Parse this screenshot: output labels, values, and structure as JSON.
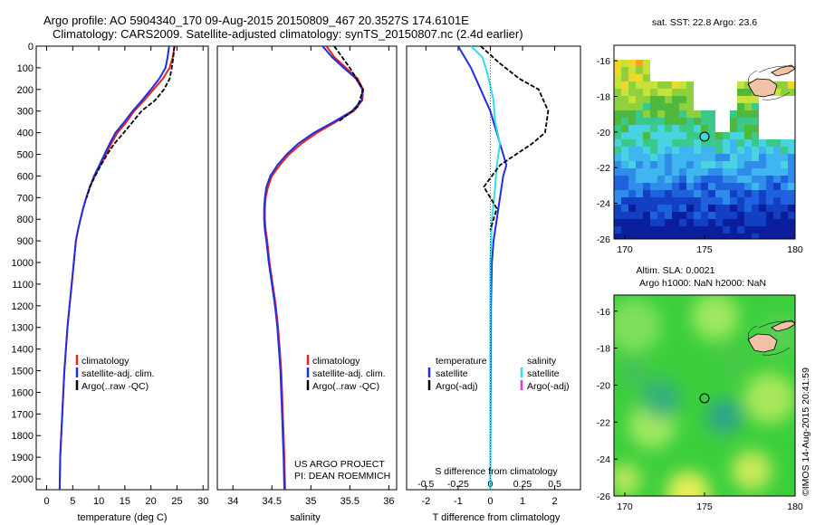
{
  "title": {
    "line1": "Argo profile: AO 5904340_170 09-Aug-2015 20150809_467 20.3527S 174.6101E",
    "line2": "Climatology: CARS2009. Satellite-adjusted climatology: synTS_20150807.nc (2.4d earlier)"
  },
  "credit": "©IMOS 14-Aug-2015 20:41:59",
  "project_text": [
    "US ARGO PROJECT",
    "PI: DEAN ROEMMICH"
  ],
  "colors": {
    "climatology": "#e8221c",
    "satellite": "#1f2ee0",
    "argo": "#000000",
    "s_satellite": "#2fe0e8",
    "s_argo": "#d63cd6"
  },
  "chart_data": [
    {
      "type": "line",
      "xlabel": "temperature (deg C)",
      "xlim": [
        -2,
        31
      ],
      "ylim": [
        0,
        2050
      ],
      "xticks": [
        0,
        5,
        10,
        15,
        20,
        25,
        30
      ],
      "yticks": [
        0,
        100,
        200,
        300,
        400,
        500,
        600,
        700,
        800,
        900,
        1000,
        1100,
        1200,
        1300,
        1400,
        1500,
        1600,
        1700,
        1800,
        1900,
        2000
      ],
      "legend": [
        "climatology",
        "satellite-adj. clim.",
        "Argo(..raw -QC)"
      ],
      "series": [
        {
          "name": "climatology",
          "color": "#e8221c",
          "points": [
            [
              24.5,
              0
            ],
            [
              24.2,
              50
            ],
            [
              23.6,
              100
            ],
            [
              22.3,
              150
            ],
            [
              20.5,
              200
            ],
            [
              18.7,
              250
            ],
            [
              16.8,
              300
            ],
            [
              15.3,
              350
            ],
            [
              13.6,
              400
            ],
            [
              12.4,
              450
            ],
            [
              11.4,
              500
            ],
            [
              10.3,
              550
            ],
            [
              9.2,
              600
            ],
            [
              8.3,
              650
            ],
            [
              7.6,
              700
            ],
            [
              7.0,
              750
            ],
            [
              6.5,
              800
            ],
            [
              6.0,
              850
            ],
            [
              5.6,
              900
            ],
            [
              5.2,
              1000
            ],
            [
              4.8,
              1100
            ],
            [
              4.4,
              1200
            ],
            [
              4.0,
              1300
            ],
            [
              3.7,
              1400
            ],
            [
              3.4,
              1500
            ],
            [
              3.2,
              1600
            ],
            [
              3.0,
              1700
            ],
            [
              2.8,
              1800
            ],
            [
              2.6,
              1900
            ],
            [
              2.5,
              2050
            ]
          ]
        },
        {
          "name": "satellite-adj. clim.",
          "color": "#1f2ee0",
          "points": [
            [
              23.5,
              0
            ],
            [
              23.2,
              50
            ],
            [
              22.8,
              100
            ],
            [
              21.6,
              150
            ],
            [
              20.0,
              200
            ],
            [
              18.3,
              250
            ],
            [
              16.5,
              300
            ],
            [
              14.9,
              350
            ],
            [
              13.2,
              400
            ],
            [
              12.1,
              450
            ],
            [
              11.1,
              500
            ],
            [
              10.1,
              550
            ],
            [
              9.1,
              600
            ],
            [
              8.3,
              650
            ],
            [
              7.6,
              700
            ],
            [
              7.0,
              750
            ],
            [
              6.5,
              800
            ],
            [
              6.0,
              850
            ],
            [
              5.6,
              900
            ],
            [
              5.2,
              1000
            ],
            [
              4.8,
              1100
            ],
            [
              4.4,
              1200
            ],
            [
              4.0,
              1300
            ],
            [
              3.7,
              1400
            ],
            [
              3.4,
              1500
            ],
            [
              3.2,
              1600
            ],
            [
              3.0,
              1700
            ],
            [
              2.8,
              1800
            ],
            [
              2.6,
              1900
            ],
            [
              2.5,
              2050
            ]
          ]
        },
        {
          "name": "Argo(..raw -QC)",
          "color": "#000000",
          "dashed": true,
          "points": [
            [
              24.5,
              0
            ],
            [
              24.3,
              50
            ],
            [
              24.0,
              100
            ],
            [
              23.6,
              150
            ],
            [
              22.5,
              200
            ],
            [
              20.8,
              250
            ],
            [
              18.2,
              300
            ],
            [
              16.5,
              350
            ],
            [
              14.8,
              400
            ],
            [
              13.0,
              450
            ],
            [
              11.6,
              500
            ],
            [
              10.4,
              550
            ],
            [
              9.3,
              600
            ],
            [
              8.3,
              650
            ],
            [
              7.7,
              700
            ]
          ]
        }
      ]
    },
    {
      "type": "line",
      "xlabel": "salinity",
      "xlim": [
        33.8,
        36.1
      ],
      "ylim": [
        0,
        2050
      ],
      "xticks": [
        34,
        34.5,
        35,
        35.5,
        36
      ],
      "legend": [
        "climatology",
        "satellite-adj. clim.",
        "Argo(..raw -QC)"
      ],
      "series": [
        {
          "name": "climatology",
          "color": "#e8221c",
          "points": [
            [
              35.2,
              0
            ],
            [
              35.3,
              50
            ],
            [
              35.45,
              100
            ],
            [
              35.6,
              150
            ],
            [
              35.67,
              200
            ],
            [
              35.66,
              250
            ],
            [
              35.55,
              300
            ],
            [
              35.32,
              350
            ],
            [
              35.08,
              400
            ],
            [
              34.88,
              450
            ],
            [
              34.72,
              500
            ],
            [
              34.6,
              550
            ],
            [
              34.5,
              600
            ],
            [
              34.45,
              650
            ],
            [
              34.42,
              700
            ],
            [
              34.41,
              750
            ],
            [
              34.41,
              800
            ],
            [
              34.42,
              850
            ],
            [
              34.44,
              900
            ],
            [
              34.47,
              1000
            ],
            [
              34.51,
              1100
            ],
            [
              34.55,
              1200
            ],
            [
              34.58,
              1300
            ],
            [
              34.6,
              1400
            ],
            [
              34.62,
              1500
            ],
            [
              34.63,
              1600
            ],
            [
              34.64,
              1700
            ],
            [
              34.65,
              1800
            ],
            [
              34.66,
              1900
            ],
            [
              34.67,
              2050
            ]
          ]
        },
        {
          "name": "satellite-adj. clim.",
          "color": "#1f2ee0",
          "points": [
            [
              35.15,
              0
            ],
            [
              35.27,
              50
            ],
            [
              35.42,
              100
            ],
            [
              35.58,
              150
            ],
            [
              35.66,
              200
            ],
            [
              35.65,
              250
            ],
            [
              35.53,
              300
            ],
            [
              35.29,
              350
            ],
            [
              35.04,
              400
            ],
            [
              34.84,
              450
            ],
            [
              34.69,
              500
            ],
            [
              34.57,
              550
            ],
            [
              34.48,
              600
            ],
            [
              34.43,
              650
            ],
            [
              34.41,
              700
            ],
            [
              34.4,
              750
            ],
            [
              34.4,
              800
            ],
            [
              34.41,
              850
            ],
            [
              34.43,
              900
            ],
            [
              34.46,
              1000
            ],
            [
              34.5,
              1100
            ],
            [
              34.54,
              1200
            ],
            [
              34.57,
              1300
            ],
            [
              34.59,
              1400
            ],
            [
              34.61,
              1500
            ],
            [
              34.62,
              1600
            ],
            [
              34.63,
              1700
            ],
            [
              34.64,
              1800
            ],
            [
              34.65,
              1900
            ],
            [
              34.66,
              2050
            ]
          ]
        },
        {
          "name": "Argo(..raw -QC)",
          "color": "#000000",
          "dashed": true,
          "points": [
            [
              35.3,
              0
            ],
            [
              35.5,
              100
            ],
            [
              35.67,
              200
            ],
            [
              35.6,
              280
            ],
            [
              35.35,
              350
            ]
          ]
        }
      ]
    },
    {
      "type": "line",
      "xlabel": "T difference from climatology",
      "xlabel_top": "S difference from climatology",
      "xlim": [
        -2.6,
        2.8
      ],
      "ylim": [
        0,
        2050
      ],
      "xticks": [
        -2,
        -1,
        0,
        1,
        2
      ],
      "xticks_s": [
        [
          "-0.5",
          -2
        ],
        [
          "-0.25",
          -1
        ],
        [
          "0",
          0
        ],
        [
          "0.25",
          1
        ],
        [
          "0.5",
          2
        ]
      ],
      "legend_t": {
        "title": "temperature",
        "items": [
          "satellite",
          "Argo(-adj)"
        ]
      },
      "legend_s": {
        "title": "salinity",
        "items": [
          "satellite",
          "Argo(-adj)"
        ]
      },
      "series": [
        {
          "name": "satellite",
          "color": "#1f2ee0",
          "points": [
            [
              -1.0,
              0
            ],
            [
              -0.6,
              100
            ],
            [
              -0.3,
              200
            ],
            [
              0.0,
              300
            ],
            [
              0.2,
              400
            ],
            [
              0.4,
              500
            ],
            [
              0.5,
              550
            ],
            [
              0.4,
              600
            ],
            [
              0.3,
              700
            ],
            [
              0.2,
              800
            ],
            [
              0.1,
              900
            ],
            [
              0.05,
              1000
            ],
            [
              0.02,
              1200
            ],
            [
              0.0,
              2050
            ]
          ]
        },
        {
          "name": "satellite",
          "color": "#2fe0e8",
          "points": [
            [
              -0.6,
              0
            ],
            [
              -0.25,
              50
            ],
            [
              -0.1,
              120
            ],
            [
              0.1,
              250
            ],
            [
              0.15,
              350
            ],
            [
              0.3,
              450
            ],
            [
              0.2,
              550
            ],
            [
              0.15,
              650
            ],
            [
              0.05,
              800
            ],
            [
              0.0,
              1000
            ],
            [
              0.0,
              2050
            ]
          ]
        },
        {
          "name": "Argo(-adj)",
          "color": "#000000",
          "dashed": true,
          "points": [
            [
              -0.3,
              0
            ],
            [
              0.3,
              80
            ],
            [
              0.9,
              150
            ],
            [
              1.5,
              200
            ],
            [
              1.8,
              300
            ],
            [
              1.7,
              400
            ],
            [
              1.3,
              450
            ],
            [
              0.8,
              500
            ],
            [
              0.3,
              550
            ],
            [
              -0.2,
              650
            ],
            [
              0.2,
              750
            ],
            [
              0.0,
              850
            ]
          ]
        }
      ]
    }
  ],
  "map_sst": {
    "title": "sat. SST: 22.8  Argo: 23.6",
    "xticks": [
      "170",
      "175",
      "180"
    ],
    "yticks": [
      "-16",
      "-18",
      "-20",
      "-22",
      "-24",
      "-26"
    ]
  },
  "map_sla": {
    "title_line1": "Altim. SLA: 0.0021",
    "title_line2": "Argo h1000: NaN h2000: NaN",
    "xticks": [
      "170",
      "175",
      "180"
    ],
    "yticks": [
      "-16",
      "-18",
      "-20",
      "-22",
      "-24",
      "-26"
    ]
  }
}
